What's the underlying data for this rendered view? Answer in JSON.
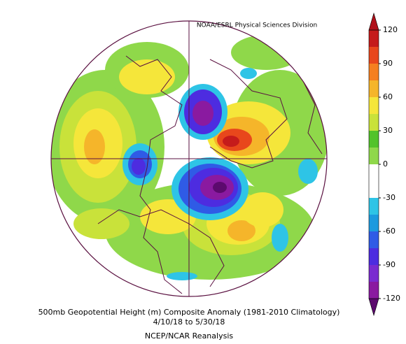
{
  "header": {
    "credit": "NOAA/ESRL Physical Sciences Division"
  },
  "colorbar": {
    "range": [
      -120,
      120
    ],
    "ticks": [
      120,
      90,
      60,
      30,
      0,
      -30,
      -60,
      -90,
      -120
    ],
    "colors": [
      "#5c0a6e",
      "#8a1aa0",
      "#7a2bd0",
      "#4d2ce0",
      "#2f5be6",
      "#1c9adf",
      "#2ec4e6",
      "#ffffff",
      "#ffffff",
      "#8fd84a",
      "#52c32a",
      "#c9e23a",
      "#f5e63a",
      "#f5b52a",
      "#f57f20",
      "#e8471c",
      "#c51b1b",
      "#b0101a"
    ]
  },
  "caption": {
    "line1": "500mb Geopotential Height (m) Composite Anomaly (1981-2010 Climatology)",
    "line2": "4/10/18  to 5/30/18",
    "line3": "NCEP/NCAR Reanalysis"
  }
}
